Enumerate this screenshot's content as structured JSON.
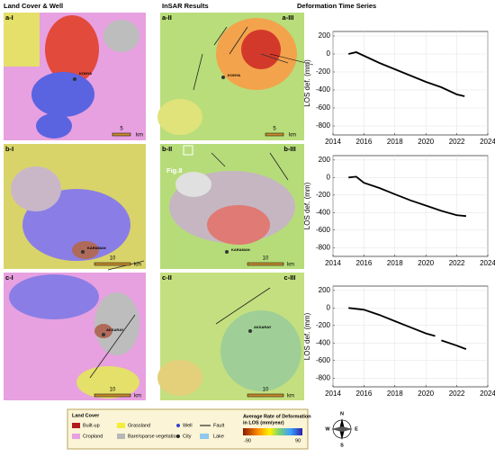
{
  "headers": [
    "Land Cover & Well",
    "InSAR Results",
    "Deformation Time Series"
  ],
  "panels": {
    "left": [
      {
        "label": "a-I",
        "city": "KONYA",
        "scale": "5",
        "unit": "km"
      },
      {
        "label": "b-I",
        "city": "KARAMAN",
        "scale": "10",
        "unit": "km"
      },
      {
        "label": "c-I",
        "city": "AKSARAY",
        "scale": "10",
        "unit": "km"
      }
    ],
    "middle": [
      {
        "label": "a-II",
        "city": "KONYA",
        "scale": "5",
        "unit": "km"
      },
      {
        "label": "b-II",
        "city": "KARAMAN",
        "scale": "10",
        "unit": "km",
        "note": "Fig.8"
      },
      {
        "label": "c-II",
        "city": "AKSARAY",
        "scale": "10",
        "unit": "km"
      }
    ],
    "right": [
      "a-III",
      "b-III",
      "c-III"
    ]
  },
  "legend": {
    "title": "Land Cover",
    "builtup": "Built-up",
    "cropland": "Cropland",
    "grassland": "Grassland",
    "bare": "Bare/sparse vegetation",
    "well": "Well",
    "city": "City",
    "fault": "Fault",
    "lake": "Lake",
    "rate_title": "Average Rate of Deformation",
    "rate_sub": "in LOS (mm/year)",
    "rate_min": "-90",
    "rate_max": "90",
    "compass": {
      "n": "N",
      "e": "E",
      "s": "S",
      "w": "W"
    }
  },
  "chart_data": [
    {
      "type": "line",
      "ylabel": "LOS def. (mm)",
      "color": "#000000",
      "x": [
        2015,
        2015.5,
        2016,
        2017,
        2018,
        2019,
        2020,
        2021,
        2022,
        2022.5
      ],
      "values": [
        0,
        20,
        -20,
        -100,
        -170,
        -240,
        -310,
        -370,
        -450,
        -470
      ],
      "xlim": [
        2014,
        2024
      ],
      "xticks": [
        2014,
        2016,
        2018,
        2020,
        2022,
        2024
      ],
      "ylim": [
        -900,
        250
      ],
      "yticks": [
        200,
        0,
        -200,
        -400,
        -600,
        -800
      ],
      "grid": true
    },
    {
      "type": "line",
      "ylabel": "LOS def. (mm)",
      "color": "#000000",
      "x": [
        2015,
        2015.5,
        2016,
        2017,
        2018,
        2019,
        2020,
        2021,
        2022,
        2022.6
      ],
      "values": [
        0,
        10,
        -60,
        -120,
        -190,
        -260,
        -320,
        -380,
        -430,
        -440
      ],
      "xlim": [
        2014,
        2024
      ],
      "xticks": [
        2014,
        2016,
        2018,
        2020,
        2022,
        2024
      ],
      "ylim": [
        -900,
        250
      ],
      "yticks": [
        200,
        0,
        -200,
        -400,
        -600,
        -800
      ],
      "grid": true
    },
    {
      "type": "line",
      "ylabel": "LOS def. (mm)",
      "color": "#000000",
      "x": [
        2015,
        2016,
        2017,
        2018,
        2019,
        2020,
        2020.6,
        2020.8,
        2021,
        2022,
        2022.6
      ],
      "values": [
        0,
        -20,
        -80,
        -150,
        -220,
        -290,
        -320,
        null,
        -370,
        -430,
        -470
      ],
      "xlim": [
        2014,
        2024
      ],
      "xticks": [
        2014,
        2016,
        2018,
        2020,
        2022,
        2024
      ],
      "ylim": [
        -900,
        250
      ],
      "yticks": [
        200,
        0,
        -200,
        -400,
        -600,
        -800
      ],
      "grid": true
    }
  ]
}
